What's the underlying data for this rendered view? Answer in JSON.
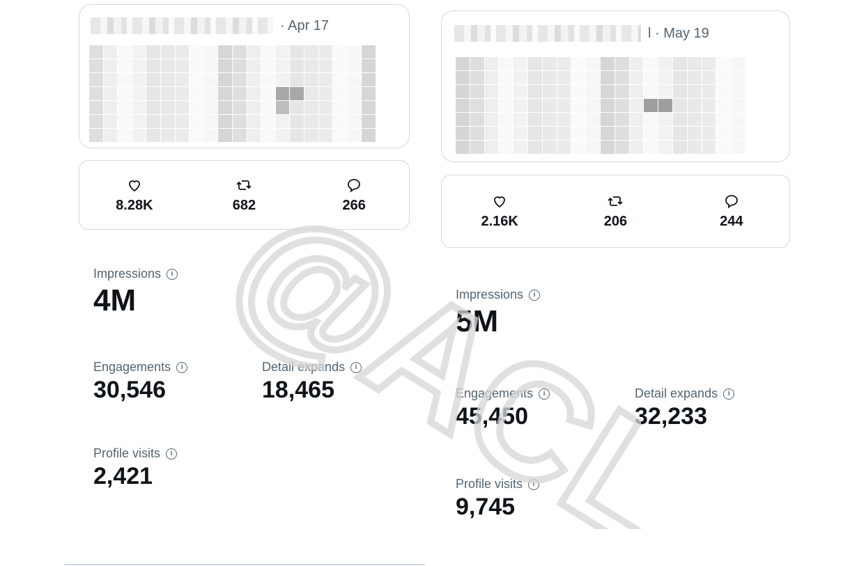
{
  "left": {
    "post": {
      "date": "· Apr 17"
    },
    "actions": {
      "likes": "8.28K",
      "reposts": "682",
      "replies": "266"
    },
    "impressions": {
      "label": "Impressions",
      "value": "4M"
    },
    "engagements": {
      "label": "Engagements",
      "value": "30,546"
    },
    "detail_expands": {
      "label": "Detail expands",
      "value": "18,465"
    },
    "profile_visits": {
      "label": "Profile visits",
      "value": "2,421"
    }
  },
  "right": {
    "post": {
      "date": "l · May 19"
    },
    "actions": {
      "likes": "2.16K",
      "reposts": "206",
      "replies": "244"
    },
    "impressions": {
      "label": "Impressions",
      "value": "5M"
    },
    "engagements": {
      "label": "Engagements",
      "value": "45,450"
    },
    "detail_expands": {
      "label": "Detail expands",
      "value": "32,233"
    },
    "profile_visits": {
      "label": "Profile visits",
      "value": "9,745"
    }
  },
  "watermark": {
    "text": "@ACL"
  },
  "icons": {
    "like": "heart-icon",
    "repost": "repost-icon",
    "reply": "reply-icon",
    "info": "info-icon"
  }
}
